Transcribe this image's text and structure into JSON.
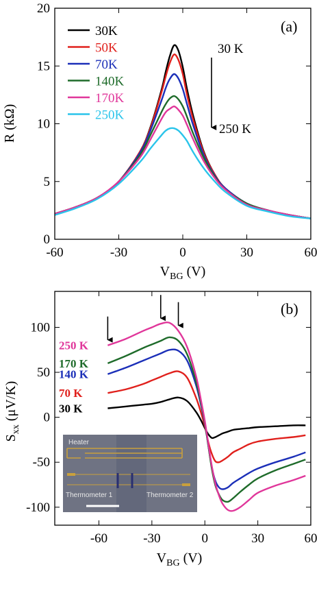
{
  "chart_data": [
    {
      "type": "line",
      "panel_label": "(a)",
      "xlabel": "V",
      "xlabel_sub": "BG",
      "xlabel_unit": " (V)",
      "ylabel": "R (kΩ)",
      "xlim": [
        -60,
        60
      ],
      "ylim": [
        0,
        20
      ],
      "xticks": [
        -60,
        -30,
        0,
        30,
        60
      ],
      "yticks": [
        0,
        5,
        10,
        15,
        20
      ],
      "x": [
        -60,
        -50,
        -40,
        -30,
        -20,
        -15,
        -10,
        -8,
        -6,
        -4,
        -2,
        0,
        2,
        5,
        10,
        15,
        20,
        30,
        40,
        50,
        60
      ],
      "series": [
        {
          "name": "30K",
          "color": "#000000",
          "values": [
            2.2,
            2.8,
            3.6,
            5.0,
            7.6,
            9.8,
            12.9,
            14.5,
            15.9,
            16.8,
            16.3,
            14.9,
            13.0,
            10.6,
            7.5,
            5.6,
            4.4,
            3.1,
            2.5,
            2.1,
            1.8
          ]
        },
        {
          "name": "50K",
          "color": "#e0201c",
          "values": [
            2.2,
            2.8,
            3.6,
            5.0,
            7.6,
            9.7,
            12.7,
            14.1,
            15.3,
            16.0,
            15.5,
            14.3,
            12.5,
            10.3,
            7.4,
            5.6,
            4.4,
            3.1,
            2.5,
            2.1,
            1.8
          ]
        },
        {
          "name": "70K",
          "color": "#1b2fb8",
          "values": [
            2.2,
            2.8,
            3.6,
            5.0,
            7.5,
            9.5,
            12.0,
            13.1,
            13.9,
            14.3,
            13.9,
            13.0,
            11.7,
            9.8,
            7.2,
            5.5,
            4.4,
            3.1,
            2.5,
            2.1,
            1.8
          ]
        },
        {
          "name": "140K",
          "color": "#1e6b2a",
          "values": [
            2.2,
            2.8,
            3.6,
            5.0,
            7.3,
            9.1,
            11.0,
            11.7,
            12.2,
            12.4,
            12.1,
            11.5,
            10.6,
            9.1,
            7.0,
            5.4,
            4.3,
            3.1,
            2.5,
            2.1,
            1.8
          ]
        },
        {
          "name": "170K",
          "color": "#e0369a",
          "values": [
            2.2,
            2.8,
            3.6,
            5.0,
            7.1,
            8.7,
            10.4,
            11.0,
            11.3,
            11.5,
            11.2,
            10.7,
            9.9,
            8.6,
            6.7,
            5.3,
            4.3,
            3.0,
            2.5,
            2.1,
            1.8
          ]
        },
        {
          "name": "250K",
          "color": "#2ac4ea",
          "values": [
            2.1,
            2.7,
            3.5,
            4.8,
            6.7,
            7.9,
            9.0,
            9.4,
            9.6,
            9.6,
            9.4,
            9.0,
            8.5,
            7.5,
            6.1,
            5.0,
            4.1,
            2.9,
            2.4,
            2.0,
            1.8
          ]
        }
      ],
      "legend_position": "top-left",
      "annotations": {
        "arrow_top": "30 K",
        "arrow_bottom": "250 K"
      }
    },
    {
      "type": "line",
      "panel_label": "(b)",
      "xlabel": "V",
      "xlabel_sub": "BG",
      "xlabel_unit": " (V)",
      "ylabel": "S",
      "ylabel_sub": "xx",
      "ylabel_unit": " (μV/K)",
      "xlim": [
        -85,
        60
      ],
      "ylim": [
        -120,
        140
      ],
      "xticks": [
        -60,
        -30,
        0,
        30,
        60
      ],
      "yticks": [
        -100,
        -50,
        0,
        50,
        100
      ],
      "x": [
        -55,
        -45,
        -35,
        -30,
        -25,
        -20,
        -15,
        -10,
        -5,
        -2,
        0,
        2,
        4,
        6,
        8,
        10,
        13,
        16,
        20,
        25,
        30,
        40,
        50,
        57
      ],
      "series": [
        {
          "name": "30 K",
          "color": "#000000",
          "values": [
            10,
            12,
            14,
            15,
            17,
            20,
            22,
            18,
            6,
            -4,
            -12,
            -19,
            -23,
            -22,
            -20,
            -18,
            -16,
            -14,
            -13,
            -12,
            -11,
            -10,
            -9,
            -9
          ]
        },
        {
          "name": "70 K",
          "color": "#e0201c",
          "values": [
            27,
            31,
            37,
            41,
            45,
            49,
            51,
            44,
            22,
            4,
            -10,
            -28,
            -41,
            -49,
            -50,
            -48,
            -44,
            -39,
            -35,
            -30,
            -27,
            -24,
            -22,
            -20
          ]
        },
        {
          "name": "140 K",
          "color": "#1b2fb8",
          "values": [
            48,
            55,
            63,
            67,
            71,
            75,
            74,
            63,
            36,
            12,
            -7,
            -32,
            -56,
            -71,
            -78,
            -80,
            -78,
            -73,
            -68,
            -62,
            -57,
            -50,
            -44,
            -39
          ]
        },
        {
          "name": "170 K",
          "color": "#1e6b2a",
          "values": [
            60,
            68,
            77,
            81,
            85,
            89,
            85,
            70,
            40,
            14,
            -6,
            -32,
            -58,
            -76,
            -86,
            -92,
            -94,
            -90,
            -83,
            -75,
            -68,
            -59,
            -52,
            -47
          ]
        },
        {
          "name": "250 K",
          "color": "#e0369a",
          "values": [
            80,
            87,
            96,
            100,
            104,
            105,
            96,
            78,
            46,
            17,
            -4,
            -30,
            -55,
            -74,
            -87,
            -96,
            -103,
            -104,
            -100,
            -92,
            -84,
            -76,
            -70,
            -65
          ]
        }
      ],
      "arrows_at_x": [
        -55,
        -25,
        -15
      ],
      "inset": {
        "heater_label": "Heater",
        "thermometer1_label": "Thermometer 1",
        "thermometer2_label": "Thermometer 2"
      }
    }
  ]
}
